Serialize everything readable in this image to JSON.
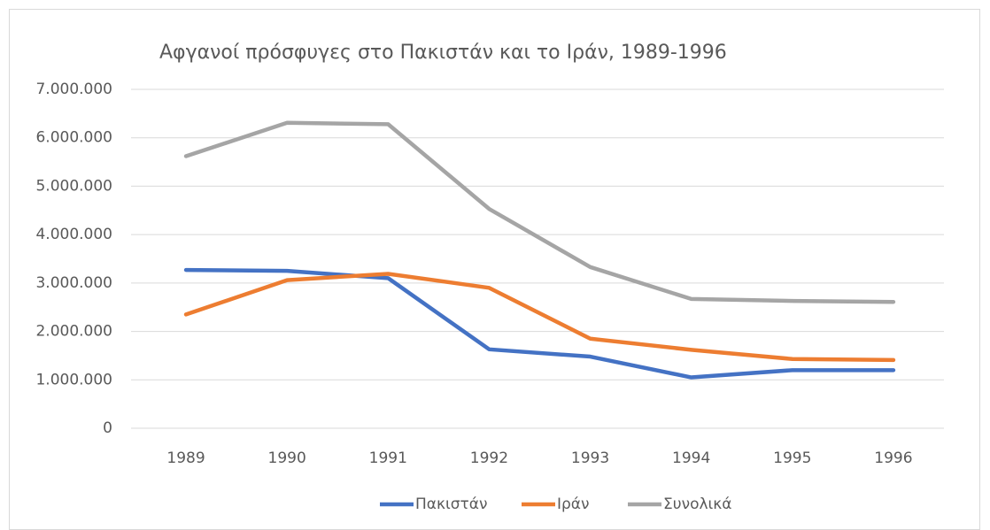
{
  "chart_data": {
    "type": "line",
    "title": "Αφγανοί πρόσφυγες στο Πακιστάν και το Ιράν, 1989-1996",
    "categories": [
      "1989",
      "1990",
      "1991",
      "1992",
      "1993",
      "1994",
      "1995",
      "1996"
    ],
    "series": [
      {
        "name": "Πακιστάν",
        "color": "#4472c4",
        "values": [
          3270000,
          3250000,
          3100000,
          1630000,
          1480000,
          1050000,
          1200000,
          1200000
        ]
      },
      {
        "name": "Ιράν",
        "color": "#ed7d31",
        "values": [
          2350000,
          3060000,
          3190000,
          2900000,
          1850000,
          1620000,
          1430000,
          1410000
        ]
      },
      {
        "name": "Συνολικά",
        "color": "#a5a5a5",
        "values": [
          5620000,
          6310000,
          6280000,
          4530000,
          3330000,
          2670000,
          2630000,
          2610000
        ]
      }
    ],
    "ylim": [
      0,
      7000000
    ],
    "yticks": [
      0,
      {
        "value": 1000000,
        "label": "1.000.000"
      },
      {
        "value": 2000000,
        "label": "2.000.000"
      },
      {
        "value": 3000000,
        "label": "3.000.000"
      },
      {
        "value": 4000000,
        "label": "4.000.000"
      },
      {
        "value": 5000000,
        "label": "5.000.000"
      },
      {
        "value": 6000000,
        "label": "6.000.000"
      },
      {
        "value": 7000000,
        "label": "7.000.000"
      }
    ],
    "grid": true,
    "legend": "bottom"
  }
}
